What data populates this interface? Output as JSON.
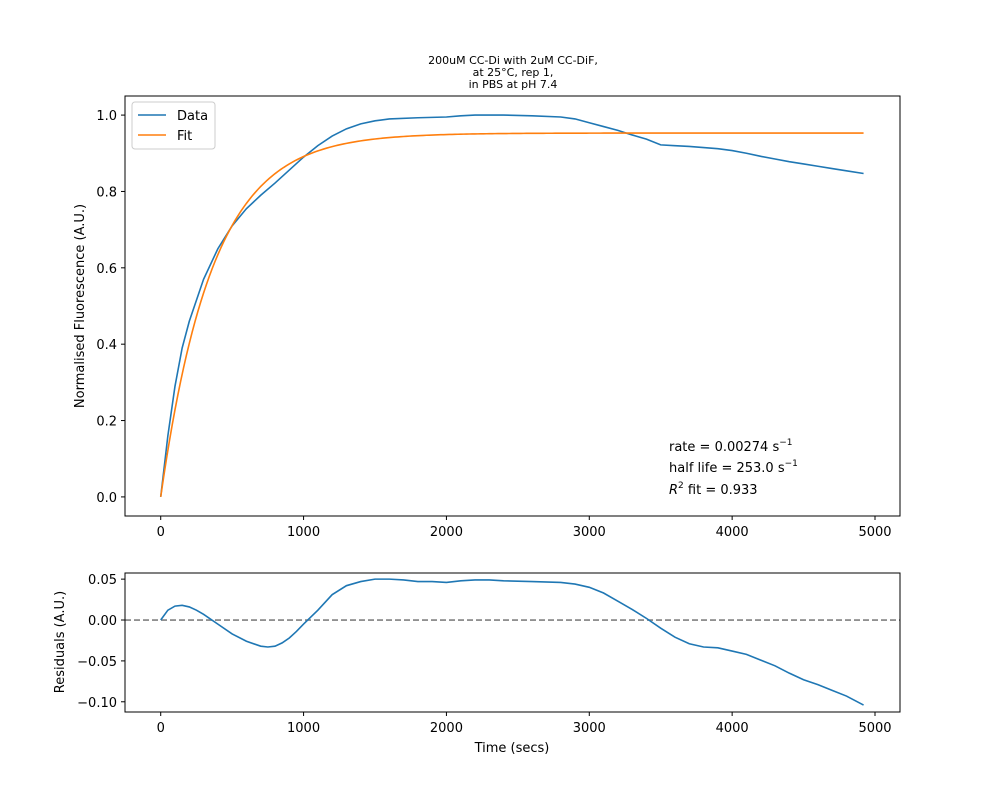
{
  "chart_data": [
    {
      "type": "line",
      "title_lines": [
        "200uM CC-Di with 2uM CC-DiF,",
        "at 25°C, rep 1,",
        "in PBS at pH 7.4"
      ],
      "xlabel": "",
      "ylabel": "Normalised Fluorescence (A.U.)",
      "xlim": [
        -250,
        5175
      ],
      "ylim": [
        -0.05,
        1.05
      ],
      "xticks": [
        0,
        1000,
        2000,
        3000,
        4000,
        5000
      ],
      "yticks": [
        0.0,
        0.2,
        0.4,
        0.6,
        0.8,
        1.0
      ],
      "xtick_labels": [
        "0",
        "1000",
        "2000",
        "3000",
        "4000",
        "5000"
      ],
      "ytick_labels": [
        "0.0",
        "0.2",
        "0.4",
        "0.6",
        "0.8",
        "1.0"
      ],
      "grid": false,
      "legend_position": "top-left",
      "series": [
        {
          "name": "Data",
          "color": "#1f77b4",
          "x": [
            0,
            50,
            100,
            150,
            200,
            300,
            400,
            500,
            600,
            700,
            800,
            900,
            1000,
            1100,
            1200,
            1300,
            1400,
            1500,
            1600,
            1800,
            2000,
            2100,
            2200,
            2400,
            2600,
            2800,
            2900,
            3000,
            3100,
            3200,
            3300,
            3400,
            3500,
            3600,
            3700,
            3800,
            3900,
            4000,
            4100,
            4200,
            4300,
            4400,
            4500,
            4600,
            4700,
            4800,
            4920
          ],
          "y": [
            0.0,
            0.16,
            0.29,
            0.39,
            0.46,
            0.57,
            0.65,
            0.71,
            0.755,
            0.79,
            0.822,
            0.856,
            0.89,
            0.92,
            0.945,
            0.964,
            0.977,
            0.985,
            0.99,
            0.993,
            0.995,
            0.998,
            1.0,
            1.0,
            0.998,
            0.995,
            0.99,
            0.98,
            0.97,
            0.96,
            0.948,
            0.937,
            0.922,
            0.92,
            0.918,
            0.915,
            0.912,
            0.907,
            0.9,
            0.892,
            0.885,
            0.878,
            0.872,
            0.866,
            0.86,
            0.854,
            0.847
          ]
        },
        {
          "name": "Fit",
          "color": "#ff7f0e",
          "model": {
            "type": "exponential",
            "plateau": 0.953,
            "rate": 0.00274
          },
          "x_range": [
            0,
            4920
          ]
        }
      ],
      "annotations": [
        {
          "text": "rate = 0.00274 s",
          "superscript": "−1"
        },
        {
          "text": "half life = 253.0 s",
          "superscript": "−1"
        },
        {
          "prefix": "R",
          "superscript": "2",
          "text": " fit = 0.933"
        }
      ]
    },
    {
      "type": "line",
      "xlabel": "Time (secs)",
      "ylabel": "Residuals (A.U.)",
      "xlim": [
        -250,
        5175
      ],
      "ylim": [
        -0.1125,
        0.0575
      ],
      "xticks": [
        0,
        1000,
        2000,
        3000,
        4000,
        5000
      ],
      "yticks": [
        0.05,
        0.0,
        -0.05,
        -0.1
      ],
      "xtick_labels": [
        "0",
        "1000",
        "2000",
        "3000",
        "4000",
        "5000"
      ],
      "ytick_labels": [
        "0.05",
        "0.00",
        "−0.05",
        "−0.10"
      ],
      "grid": false,
      "reference_line": {
        "y": 0.0,
        "style": "dashed",
        "color": "#808080"
      },
      "series": [
        {
          "name": "",
          "color": "#1f77b4",
          "x": [
            0,
            50,
            100,
            150,
            200,
            250,
            300,
            400,
            500,
            600,
            700,
            750,
            800,
            850,
            900,
            950,
            1000,
            1100,
            1200,
            1300,
            1400,
            1500,
            1600,
            1700,
            1800,
            1900,
            2000,
            2100,
            2200,
            2300,
            2400,
            2600,
            2800,
            2900,
            3000,
            3100,
            3200,
            3300,
            3400,
            3500,
            3600,
            3700,
            3800,
            3900,
            4000,
            4100,
            4200,
            4300,
            4400,
            4500,
            4600,
            4700,
            4800,
            4920
          ],
          "y": [
            0.0,
            0.012,
            0.017,
            0.018,
            0.016,
            0.012,
            0.007,
            -0.005,
            -0.017,
            -0.026,
            -0.032,
            -0.033,
            -0.032,
            -0.028,
            -0.022,
            -0.014,
            -0.005,
            0.012,
            0.031,
            0.042,
            0.047,
            0.05,
            0.05,
            0.049,
            0.047,
            0.047,
            0.046,
            0.048,
            0.049,
            0.049,
            0.048,
            0.047,
            0.046,
            0.044,
            0.04,
            0.033,
            0.023,
            0.013,
            0.002,
            -0.01,
            -0.021,
            -0.029,
            -0.033,
            -0.034,
            -0.038,
            -0.042,
            -0.049,
            -0.056,
            -0.065,
            -0.073,
            -0.079,
            -0.086,
            -0.093,
            -0.104
          ]
        }
      ]
    }
  ]
}
